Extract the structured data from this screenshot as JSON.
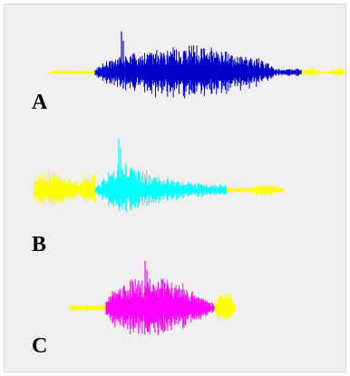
{
  "panel_labels": {
    "a": "A",
    "b": "B",
    "c": "C"
  },
  "colors": {
    "background": "#efefef",
    "segment_yellow": "#ffff00",
    "waveform_a": "#0000cc",
    "waveform_b": "#00ffff",
    "waveform_c": "#ff00ff",
    "label_text": "#000000"
  },
  "waveforms": [
    {
      "id": "a",
      "segments": [
        "segment_yellow",
        "waveform_a",
        "segment_yellow"
      ]
    },
    {
      "id": "b",
      "segments": [
        "segment_yellow",
        "waveform_b",
        "segment_yellow"
      ]
    },
    {
      "id": "c",
      "segments": [
        "segment_yellow",
        "waveform_c",
        "segment_yellow"
      ]
    }
  ]
}
